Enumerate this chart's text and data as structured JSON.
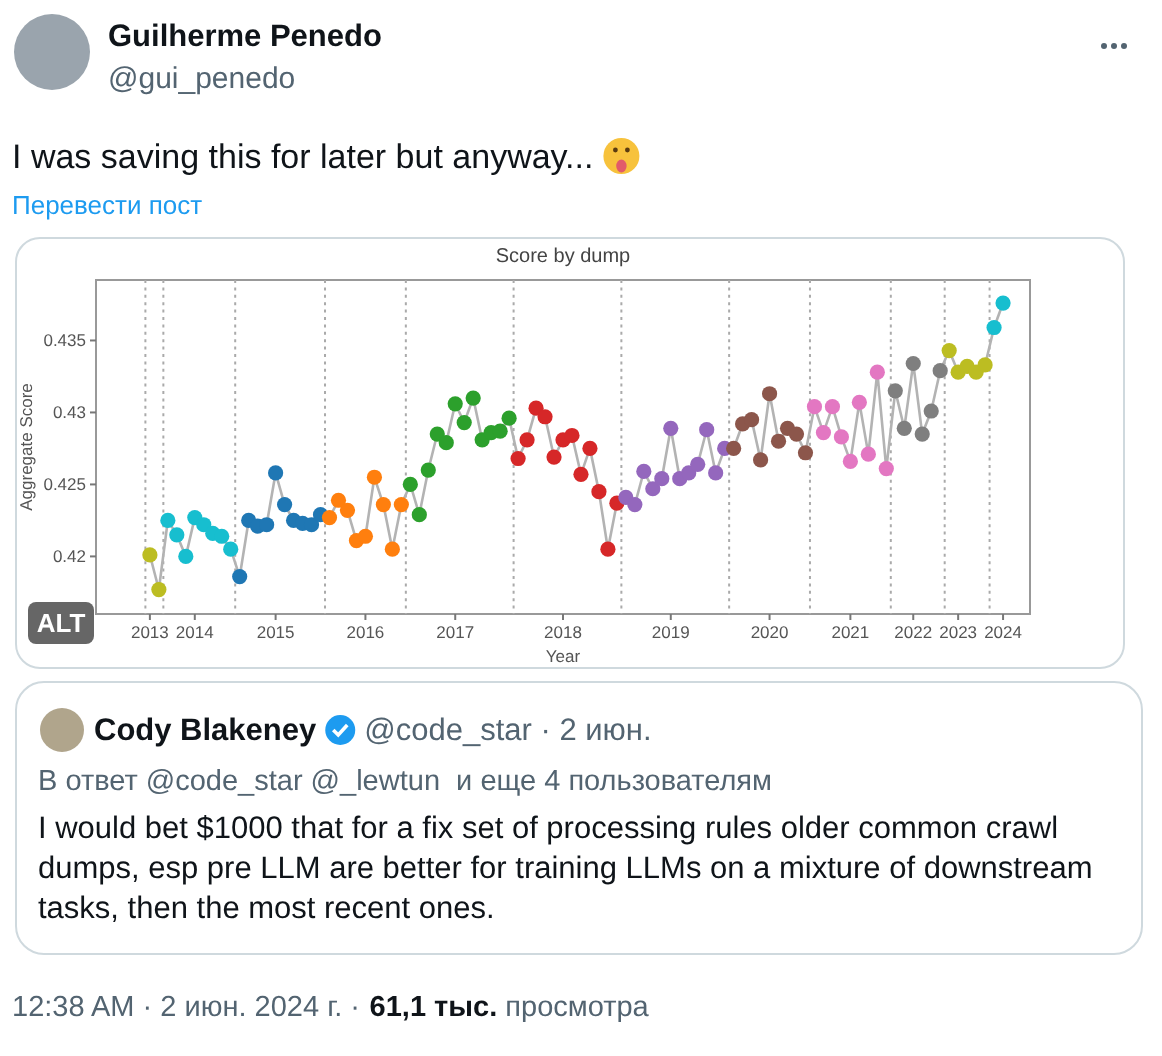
{
  "chart_data": {
    "type": "line",
    "title": "Score by dump",
    "xlabel": "Year",
    "ylabel": "Aggregate Score",
    "categories": [
      "2013",
      null,
      null,
      null,
      null,
      "2014",
      null,
      null,
      null,
      null,
      null,
      null,
      null,
      null,
      "2015",
      null,
      null,
      null,
      null,
      null,
      null,
      null,
      null,
      null,
      "2016",
      null,
      null,
      null,
      null,
      null,
      null,
      null,
      null,
      null,
      "2017",
      null,
      null,
      null,
      null,
      null,
      null,
      null,
      null,
      null,
      null,
      null,
      "2018",
      null,
      null,
      null,
      null,
      null,
      null,
      null,
      null,
      null,
      null,
      null,
      "2019",
      null,
      null,
      null,
      null,
      null,
      null,
      null,
      null,
      null,
      null,
      "2020",
      null,
      null,
      null,
      null,
      null,
      null,
      null,
      null,
      "2021",
      null,
      null,
      null,
      null,
      null,
      null,
      "2022",
      null,
      null,
      null,
      null,
      "2023",
      null,
      null,
      null,
      null,
      "2024"
    ],
    "ylim": [
      0.416,
      0.4392
    ],
    "yticks": [
      0.42,
      0.425,
      0.43,
      0.435
    ],
    "marker": "circle",
    "series": [
      {
        "color": "#b3b3b3",
        "colors": [
          "#bcbd22",
          "#bcbd22",
          "#17becf",
          "#17becf",
          "#17becf",
          "#17becf",
          "#17becf",
          "#17becf",
          "#17becf",
          "#17becf",
          "#1f77b4",
          "#1f77b4",
          "#1f77b4",
          "#1f77b4",
          "#1f77b4",
          "#1f77b4",
          "#1f77b4",
          "#1f77b4",
          "#1f77b4",
          "#1f77b4",
          "#ff7f0e",
          "#ff7f0e",
          "#ff7f0e",
          "#ff7f0e",
          "#ff7f0e",
          "#ff7f0e",
          "#ff7f0e",
          "#ff7f0e",
          "#ff7f0e",
          "#2ca02c",
          "#2ca02c",
          "#2ca02c",
          "#2ca02c",
          "#2ca02c",
          "#2ca02c",
          "#2ca02c",
          "#2ca02c",
          "#2ca02c",
          "#2ca02c",
          "#2ca02c",
          "#2ca02c",
          "#d62728",
          "#d62728",
          "#d62728",
          "#d62728",
          "#d62728",
          "#d62728",
          "#d62728",
          "#d62728",
          "#d62728",
          "#d62728",
          "#d62728",
          "#d62728",
          "#9467bd",
          "#9467bd",
          "#9467bd",
          "#9467bd",
          "#9467bd",
          "#9467bd",
          "#9467bd",
          "#9467bd",
          "#9467bd",
          "#9467bd",
          "#9467bd",
          "#9467bd",
          "#8c564b",
          "#8c564b",
          "#8c564b",
          "#8c564b",
          "#8c564b",
          "#8c564b",
          "#8c564b",
          "#8c564b",
          "#8c564b",
          "#e377c2",
          "#e377c2",
          "#e377c2",
          "#e377c2",
          "#e377c2",
          "#e377c2",
          "#e377c2",
          "#e377c2",
          "#e377c2",
          "#7f7f7f",
          "#7f7f7f",
          "#7f7f7f",
          "#7f7f7f",
          "#7f7f7f",
          "#7f7f7f",
          "#bcbd22",
          "#bcbd22",
          "#bcbd22",
          "#bcbd22",
          "#bcbd22",
          "#17becf",
          "#17becf"
        ],
        "values": [
          0.4201,
          0.4177,
          0.4225,
          0.4215,
          0.42,
          0.4227,
          0.4222,
          0.4216,
          0.4214,
          0.4205,
          0.4186,
          0.4225,
          0.4221,
          0.4222,
          0.4258,
          0.4236,
          0.4225,
          0.4223,
          0.4222,
          0.4229,
          0.4227,
          0.4239,
          0.4232,
          0.4211,
          0.4214,
          0.4255,
          0.4236,
          0.4205,
          0.4236,
          0.425,
          0.4229,
          0.426,
          0.4285,
          0.4279,
          0.4306,
          0.4293,
          0.431,
          0.4281,
          0.4286,
          0.4287,
          0.4296,
          0.4268,
          0.4281,
          0.4303,
          0.4297,
          0.4269,
          0.4281,
          0.4284,
          0.4257,
          0.4275,
          0.4245,
          0.4205,
          0.4237,
          0.4241,
          0.4236,
          0.4259,
          0.4247,
          0.4254,
          0.4289,
          0.4254,
          0.4258,
          0.4264,
          0.4288,
          0.4258,
          0.4275,
          0.4275,
          0.4292,
          0.4295,
          0.4267,
          0.4313,
          0.428,
          0.4289,
          0.4285,
          0.4272,
          0.4304,
          0.4286,
          0.4304,
          0.4283,
          0.4266,
          0.4307,
          0.4271,
          0.4328,
          0.4261,
          0.4315,
          0.4289,
          0.4334,
          0.4285,
          0.4301,
          0.4329,
          0.4343,
          0.4328,
          0.4332,
          0.4328,
          0.4333,
          0.4359,
          0.4376
        ]
      }
    ],
    "annotations": [
      "Guilherme Penedo",
      "@gui_penedo",
      "I was saving this for later but anyway...",
      "Перевести пост",
      "ALT",
      "Cody Blakeney",
      "@code_star · 2 июн.",
      "В ответ @code_star @_lewtun  и еще 4 пользователям",
      "I would bet $1000 that for a fix set of processing rules older common crawl dumps, esp pre LLM are better for training LLMs on a mixture of downstream tasks, then the most recent ones.",
      "12:38 AM · 2 июн. 2024 г. · ",
      "61,1 тыс.",
      " просмотра"
    ]
  }
}
